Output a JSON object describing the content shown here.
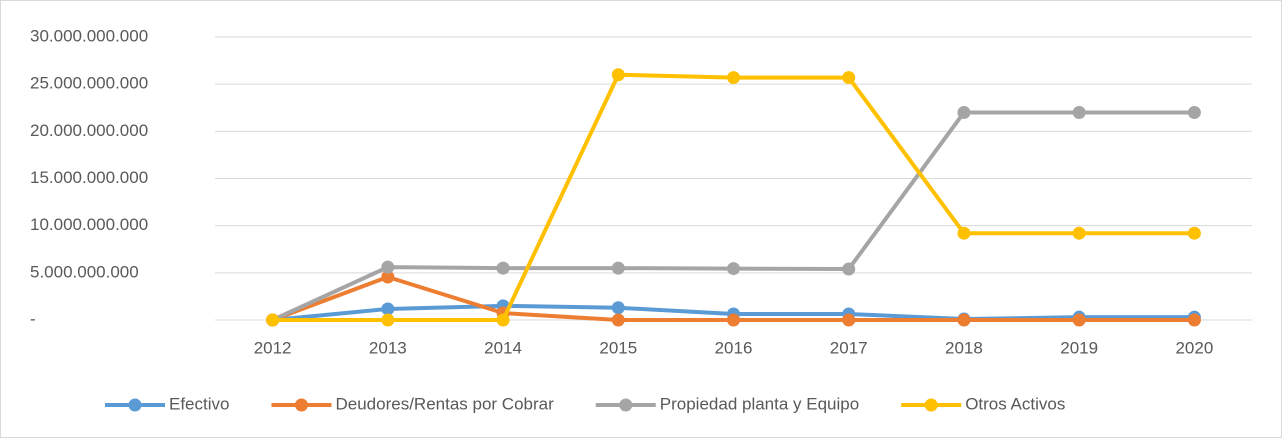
{
  "chart_data": {
    "type": "line",
    "categories": [
      "2012",
      "2013",
      "2014",
      "2015",
      "2016",
      "2017",
      "2018",
      "2019",
      "2020"
    ],
    "series": [
      {
        "name": "Efectivo",
        "color": "#5b9bd5",
        "values": [
          0,
          1170000000,
          1500000000,
          1300000000,
          640000000,
          640000000,
          100000000,
          300000000,
          300000000
        ]
      },
      {
        "name": "Deudores/Rentas por Cobrar",
        "color": "#ed7d31",
        "values": [
          0,
          4560000000,
          740000000,
          0,
          0,
          0,
          0,
          0,
          0
        ]
      },
      {
        "name": "Propiedad planta y Equipo",
        "color": "#a5a5a5",
        "values": [
          0,
          5600000000,
          5500000000,
          5500000000,
          5450000000,
          5400000000,
          22000000000,
          22000000000,
          22000000000
        ]
      },
      {
        "name": "Otros Activos",
        "color": "#ffc000",
        "values": [
          0,
          0,
          0,
          26000000000,
          25700000000,
          25700000000,
          9200000000,
          9200000000,
          9200000000
        ]
      }
    ],
    "ylim": [
      0,
      30000000000
    ],
    "yticks": [
      {
        "value": 0,
        "label": "-"
      },
      {
        "value": 5000000000,
        "label": "5.000.000.000"
      },
      {
        "value": 10000000000,
        "label": "10.000.000.000"
      },
      {
        "value": 15000000000,
        "label": "15.000.000.000"
      },
      {
        "value": 20000000000,
        "label": "20.000.000.000"
      },
      {
        "value": 25000000000,
        "label": "25.000.000.000"
      },
      {
        "value": 30000000000,
        "label": "30.000.000.000"
      }
    ],
    "grid": true,
    "legend": "bottom"
  }
}
